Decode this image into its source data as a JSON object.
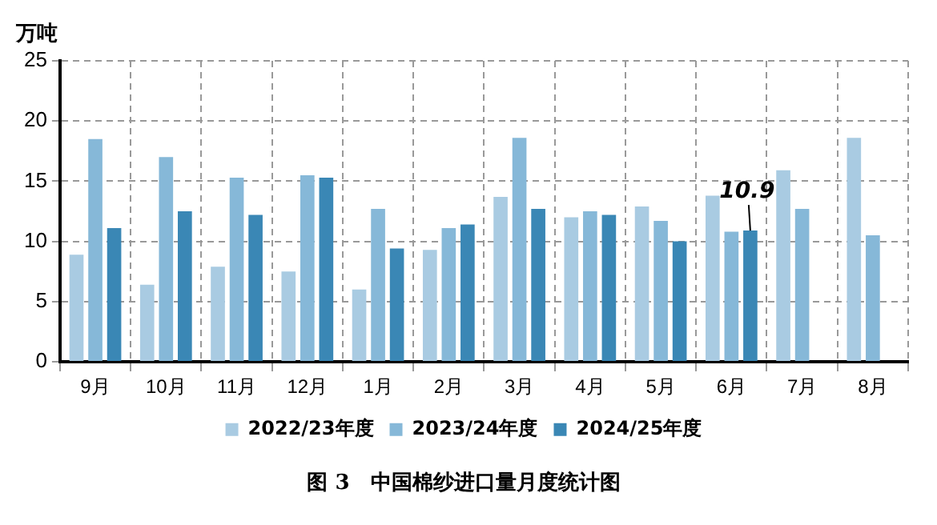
{
  "chart_data": {
    "type": "bar",
    "title": "图 3　中国棉纱进口量月度统计图",
    "ylabel": "万吨",
    "categories": [
      "9月",
      "10月",
      "11月",
      "12月",
      "1月",
      "2月",
      "3月",
      "4月",
      "5月",
      "6月",
      "7月",
      "8月"
    ],
    "series": [
      {
        "name": "2022/23年度",
        "color": "#a9cbe2",
        "values": [
          8.9,
          6.4,
          7.9,
          7.5,
          6.0,
          9.3,
          13.7,
          12.0,
          12.9,
          13.8,
          15.9,
          18.6
        ]
      },
      {
        "name": "2023/24年度",
        "color": "#86b8d8",
        "values": [
          18.5,
          17.0,
          15.3,
          15.5,
          12.7,
          11.1,
          18.6,
          12.5,
          11.7,
          10.8,
          12.7,
          10.5
        ]
      },
      {
        "name": "2024/25年度",
        "color": "#3a87b5",
        "values": [
          11.1,
          12.5,
          12.2,
          15.3,
          9.4,
          11.4,
          12.7,
          12.2,
          10.0,
          10.9,
          null,
          null
        ]
      }
    ],
    "annotations": [
      {
        "text": "10.9",
        "x": "6月",
        "y": 10.9
      }
    ],
    "ylim": [
      0,
      25
    ],
    "yticks": [
      0,
      5,
      10,
      15,
      20,
      25
    ],
    "grid": true,
    "legend": "bottom"
  }
}
